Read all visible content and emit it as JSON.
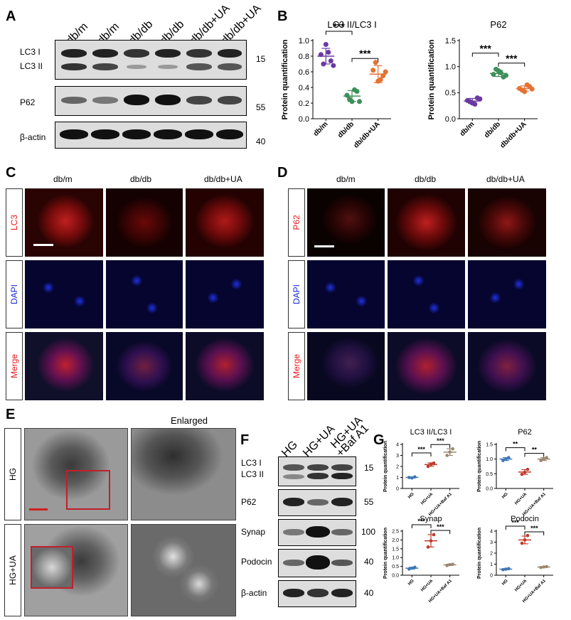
{
  "panels": {
    "A": "A",
    "B": "B",
    "C": "C",
    "D": "D",
    "E": "E",
    "F": "F",
    "G": "G"
  },
  "blotA": {
    "lanes": [
      "db/m",
      "db/m",
      "db/db",
      "db/db",
      "db/db+UA",
      "db/db+UA"
    ],
    "rows": [
      {
        "label1": "LC3 I",
        "label2": "LC3 II",
        "mw": "15"
      },
      {
        "label1": "P62",
        "mw": "55"
      },
      {
        "label1": "β-actin",
        "mw": "40"
      }
    ]
  },
  "blotF": {
    "lanes": [
      "HG",
      "HG+UA",
      "HG+UA",
      "+Baf A1"
    ],
    "rows": [
      {
        "label1": "LC3 I",
        "label2": "LC3 II",
        "mw": "15"
      },
      {
        "label1": "P62",
        "mw": "55"
      },
      {
        "label1": "Synap",
        "mw": "100"
      },
      {
        "label1": "Podocin",
        "mw": "40"
      },
      {
        "label1": "β-actin",
        "mw": "40"
      }
    ]
  },
  "if": {
    "cols_c": [
      "db/m",
      "db/db",
      "db/db+UA"
    ],
    "cols_d": [
      "db/m",
      "db/db",
      "db/db+UA"
    ],
    "row_c1": "LC3",
    "row_d1": "P62",
    "row2": "DAPI",
    "row3": "Merge",
    "colors": {
      "red": "#e8151b",
      "blue": "#1a2bd8",
      "purple": "#6a3aa0"
    }
  },
  "em": {
    "enlarged": "Enlarged",
    "row1": "HG",
    "row2": "HG+UA"
  },
  "chart_data": [
    {
      "type": "scatter",
      "title": "LC3 II/LC3 I",
      "ylabel": "Protein quantification",
      "categories": [
        "db/m",
        "db/db",
        "db/db+UA"
      ],
      "ylim": [
        0,
        1.0
      ],
      "yticks": [
        "0.0",
        "0.2",
        "0.4",
        "0.6",
        "0.8",
        "1.0"
      ],
      "series": [
        {
          "values": [
            0.82,
            0.95,
            0.74,
            0.7,
            0.85,
            0.68
          ],
          "mean": 0.8,
          "sd": 0.1
        },
        {
          "values": [
            0.3,
            0.22,
            0.35,
            0.25,
            0.37,
            0.22
          ],
          "mean": 0.29,
          "sd": 0.07
        },
        {
          "values": [
            0.62,
            0.48,
            0.55,
            0.72,
            0.5,
            0.6
          ],
          "mean": 0.57,
          "sd": 0.11
        }
      ],
      "colors": [
        "#6a3aa0",
        "#3f8f5b",
        "#e57232"
      ],
      "sig": [
        "***",
        "***"
      ]
    },
    {
      "type": "scatter",
      "title": "P62",
      "ylabel": "Protein quantification",
      "categories": [
        "db/m",
        "db/db",
        "db/db+UA"
      ],
      "ylim": [
        0,
        1.5
      ],
      "yticks": [
        "0.0",
        "0.5",
        "1.0",
        "1.5"
      ],
      "series": [
        {
          "values": [
            0.35,
            0.3,
            0.4,
            0.33,
            0.28,
            0.38
          ],
          "mean": 0.34,
          "sd": 0.05
        },
        {
          "values": [
            0.85,
            0.92,
            0.8,
            0.95,
            0.88,
            0.83
          ],
          "mean": 0.87,
          "sd": 0.06
        },
        {
          "values": [
            0.58,
            0.52,
            0.62,
            0.55,
            0.65,
            0.57
          ],
          "mean": 0.58,
          "sd": 0.05
        }
      ],
      "colors": [
        "#6a3aa0",
        "#3f8f5b",
        "#e57232"
      ],
      "sig": [
        "***",
        "***"
      ]
    },
    {
      "type": "scatter",
      "title": "LC3 II/LC3 I",
      "ylabel": "Protein quantification",
      "categories": [
        "HG",
        "HG+UA",
        "HG+UA+Baf A1"
      ],
      "ylim": [
        0,
        4
      ],
      "yticks": [
        "0",
        "1",
        "2",
        "3",
        "4"
      ],
      "series": [
        {
          "values": [
            1.0,
            0.95,
            1.05
          ],
          "mean": 1.0,
          "sd": 0.05
        },
        {
          "values": [
            2.0,
            2.2,
            2.3
          ],
          "mean": 2.17,
          "sd": 0.15
        },
        {
          "values": [
            3.0,
            3.3,
            3.6
          ],
          "mean": 3.3,
          "sd": 0.3
        }
      ],
      "colors": [
        "#3f78b5",
        "#c0392b",
        "#9a8870"
      ],
      "sig": [
        "***",
        "***"
      ]
    },
    {
      "type": "scatter",
      "title": "P62",
      "ylabel": "Protein quantification",
      "categories": [
        "HG",
        "HG+UA",
        "HG+UA+Baf A1"
      ],
      "ylim": [
        0,
        1.5
      ],
      "yticks": [
        "0.0",
        "0.5",
        "1.0",
        "1.5"
      ],
      "series": [
        {
          "values": [
            0.95,
            1.0,
            1.05
          ],
          "mean": 1.0,
          "sd": 0.05
        },
        {
          "values": [
            0.48,
            0.55,
            0.65
          ],
          "mean": 0.56,
          "sd": 0.08
        },
        {
          "values": [
            0.95,
            1.0,
            1.05
          ],
          "mean": 1.0,
          "sd": 0.05
        }
      ],
      "colors": [
        "#3f78b5",
        "#c0392b",
        "#9a8870"
      ],
      "sig": [
        "**",
        "**"
      ]
    },
    {
      "type": "scatter",
      "title": "Synap",
      "ylabel": "Protein quantification",
      "categories": [
        "HG",
        "HG+UA",
        "HG+UA+Baf A1"
      ],
      "ylim": [
        0,
        2.5
      ],
      "yticks": [
        "0.0",
        "0.5",
        "1.0",
        "1.5",
        "2.0",
        "2.5"
      ],
      "series": [
        {
          "values": [
            0.35,
            0.4,
            0.45
          ],
          "mean": 0.4,
          "sd": 0.05
        },
        {
          "values": [
            1.6,
            1.95,
            2.3
          ],
          "mean": 1.95,
          "sd": 0.35
        },
        {
          "values": [
            0.55,
            0.6,
            0.62
          ],
          "mean": 0.59,
          "sd": 0.04
        }
      ],
      "colors": [
        "#3f78b5",
        "#c0392b",
        "#9a8870"
      ],
      "sig": [
        "***",
        "***"
      ]
    },
    {
      "type": "scatter",
      "title": "Podocin",
      "ylabel": "Protein quantification",
      "categories": [
        "HG",
        "HG+UA",
        "HG+UA+Baf A1"
      ],
      "ylim": [
        0,
        4
      ],
      "yticks": [
        "0",
        "1",
        "2",
        "3",
        "4"
      ],
      "series": [
        {
          "values": [
            0.5,
            0.55,
            0.6
          ],
          "mean": 0.55,
          "sd": 0.05
        },
        {
          "values": [
            2.9,
            3.2,
            3.6
          ],
          "mean": 3.2,
          "sd": 0.35
        },
        {
          "values": [
            0.7,
            0.75,
            0.78
          ],
          "mean": 0.74,
          "sd": 0.04
        }
      ],
      "colors": [
        "#3f78b5",
        "#c0392b",
        "#9a8870"
      ],
      "sig": [
        "***",
        "***"
      ]
    }
  ]
}
